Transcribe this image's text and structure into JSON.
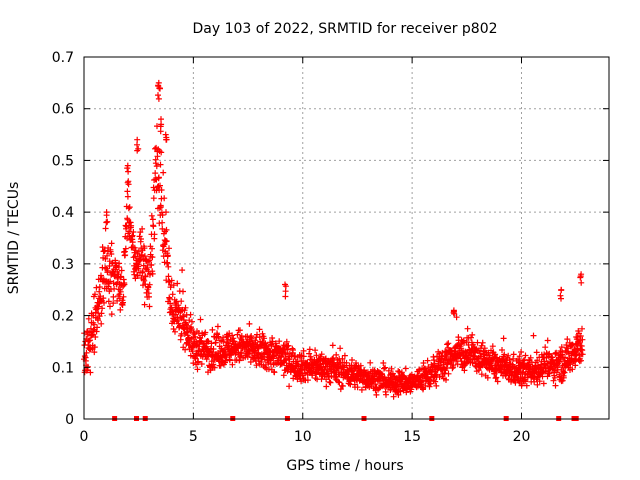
{
  "chart_data": {
    "type": "scatter",
    "title": "Day 103 of 2022, SRMTID for receiver p802",
    "xlabel": "GPS time / hours",
    "ylabel": "SRMTID / TECUs",
    "xlim": [
      0,
      24
    ],
    "ylim": [
      0,
      0.7
    ],
    "x_ticks": [
      "0",
      "5",
      "10",
      "15",
      "20"
    ],
    "x_tick_values": [
      0,
      5,
      10,
      15,
      20
    ],
    "y_ticks": [
      "0",
      "0.1",
      "0.2",
      "0.3",
      "0.4",
      "0.5",
      "0.6",
      "0.7"
    ],
    "y_tick_values": [
      0,
      0.1,
      0.2,
      0.3,
      0.4,
      0.5,
      0.6,
      0.7
    ],
    "grid": true,
    "marker": "+",
    "color": "#ff0000",
    "series": [
      {
        "name": "SRMTID",
        "envelope": [
          [
            0.0,
            0.11,
            0.09
          ],
          [
            0.5,
            0.18,
            0.09
          ],
          [
            1.0,
            0.3,
            0.12
          ],
          [
            1.3,
            0.27,
            0.1
          ],
          [
            1.8,
            0.25,
            0.08
          ],
          [
            2.0,
            0.42,
            0.1
          ],
          [
            2.3,
            0.3,
            0.08
          ],
          [
            2.6,
            0.32,
            0.1
          ],
          [
            3.0,
            0.25,
            0.09
          ],
          [
            3.3,
            0.5,
            0.16
          ],
          [
            3.6,
            0.4,
            0.15
          ],
          [
            4.0,
            0.2,
            0.09
          ],
          [
            4.5,
            0.2,
            0.08
          ],
          [
            5.0,
            0.14,
            0.07
          ],
          [
            6.0,
            0.13,
            0.06
          ],
          [
            7.0,
            0.14,
            0.06
          ],
          [
            8.0,
            0.13,
            0.06
          ],
          [
            9.0,
            0.12,
            0.06
          ],
          [
            10.0,
            0.1,
            0.05
          ],
          [
            11.0,
            0.1,
            0.05
          ],
          [
            12.0,
            0.09,
            0.05
          ],
          [
            13.0,
            0.08,
            0.04
          ],
          [
            14.0,
            0.07,
            0.04
          ],
          [
            15.0,
            0.07,
            0.04
          ],
          [
            16.0,
            0.09,
            0.05
          ],
          [
            17.0,
            0.13,
            0.06
          ],
          [
            18.0,
            0.12,
            0.05
          ],
          [
            19.0,
            0.1,
            0.05
          ],
          [
            20.0,
            0.09,
            0.05
          ],
          [
            21.0,
            0.1,
            0.05
          ],
          [
            22.0,
            0.11,
            0.06
          ],
          [
            22.7,
            0.15,
            0.08
          ],
          [
            22.8,
            0.13,
            0.06
          ]
        ],
        "peaks": [
          [
            1.05,
            0.4
          ],
          [
            2.0,
            0.49
          ],
          [
            2.45,
            0.54
          ],
          [
            3.4,
            0.65
          ],
          [
            3.45,
            0.64
          ],
          [
            3.5,
            0.58
          ],
          [
            3.75,
            0.55
          ],
          [
            9.2,
            0.26
          ],
          [
            16.9,
            0.21
          ],
          [
            22.7,
            0.28
          ],
          [
            21.8,
            0.25
          ]
        ]
      }
    ],
    "baseline_markers_x": [
      1.4,
      2.4,
      2.8,
      6.8,
      9.3,
      12.8,
      15.9,
      19.3,
      21.7,
      22.4,
      22.5
    ]
  }
}
